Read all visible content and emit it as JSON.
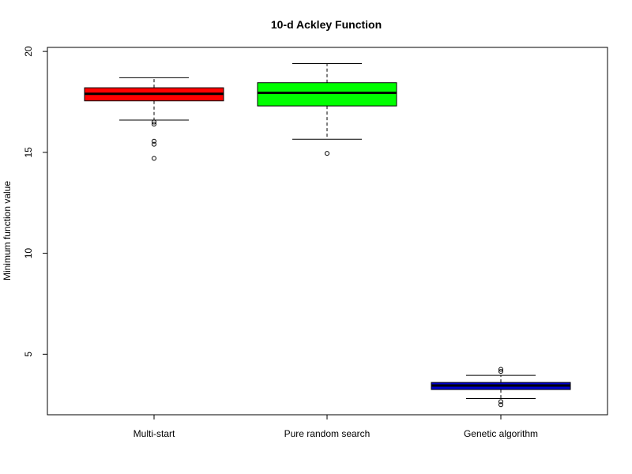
{
  "chart_data": {
    "type": "box",
    "title": "10-d Ackley Function",
    "xlabel": "",
    "ylabel": "Minimum function value",
    "ylim": [
      2.0,
      20.2
    ],
    "yticks": [
      5,
      10,
      15,
      20
    ],
    "grid": false,
    "legend": "none",
    "categories": [
      "Multi-start",
      "Pure random search",
      "Genetic algorithm"
    ],
    "boxes": [
      {
        "category": "Multi-start",
        "color": "#ff0000",
        "whisker_low": 16.6,
        "q1": 17.55,
        "median": 17.9,
        "q3": 18.2,
        "whisker_high": 18.7,
        "outliers": [
          16.4,
          16.5,
          15.4,
          15.55,
          14.7
        ]
      },
      {
        "category": "Pure random search",
        "color": "#00ff00",
        "whisker_low": 15.65,
        "q1": 17.3,
        "median": 17.95,
        "q3": 18.45,
        "whisker_high": 19.4,
        "outliers": [
          14.95
        ]
      },
      {
        "category": "Genetic algorithm",
        "color": "#0000cd",
        "whisker_low": 2.8,
        "q1": 3.25,
        "median": 3.45,
        "q3": 3.6,
        "whisker_high": 3.95,
        "outliers": [
          4.15,
          4.25,
          2.5,
          2.65
        ]
      }
    ]
  }
}
